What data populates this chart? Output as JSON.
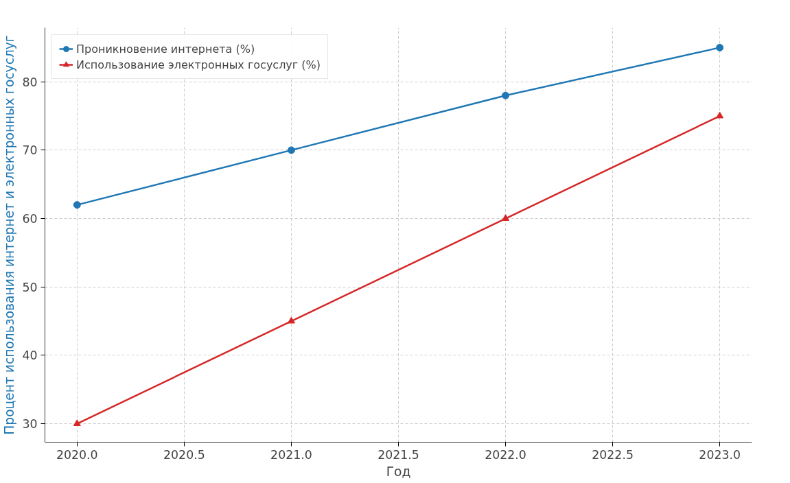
{
  "chart_data": {
    "type": "line",
    "xlabel": "Год",
    "ylabel": "Процент использования интернет и электронных госуслуг",
    "x": [
      2020,
      2021,
      2022,
      2023
    ],
    "series": [
      {
        "name": "Проникновение интернета (%)",
        "color": "#1f77b4",
        "values": [
          62,
          70,
          78,
          85
        ],
        "marker": "circle"
      },
      {
        "name": "Использование электронных госуслуг (%)",
        "color": "#d62728",
        "values": [
          30,
          45,
          60,
          75
        ],
        "marker": "triangle"
      }
    ],
    "xlim": [
      2019.85,
      2023.15
    ],
    "ylim": [
      27.3,
      87.9
    ],
    "xticks": [
      {
        "value": 2020,
        "label": "2020.0"
      },
      {
        "value": 2020.5,
        "label": "2020.5"
      },
      {
        "value": 2021,
        "label": "2021.0"
      },
      {
        "value": 2021.5,
        "label": "2021.5"
      },
      {
        "value": 2022,
        "label": "2022.0"
      },
      {
        "value": 2022.5,
        "label": "2022.5"
      },
      {
        "value": 2023,
        "label": "2023.0"
      }
    ],
    "yticks": [
      30,
      40,
      50,
      60,
      70,
      80
    ],
    "grid": true,
    "legend": "top left",
    "line_style": "solid"
  }
}
